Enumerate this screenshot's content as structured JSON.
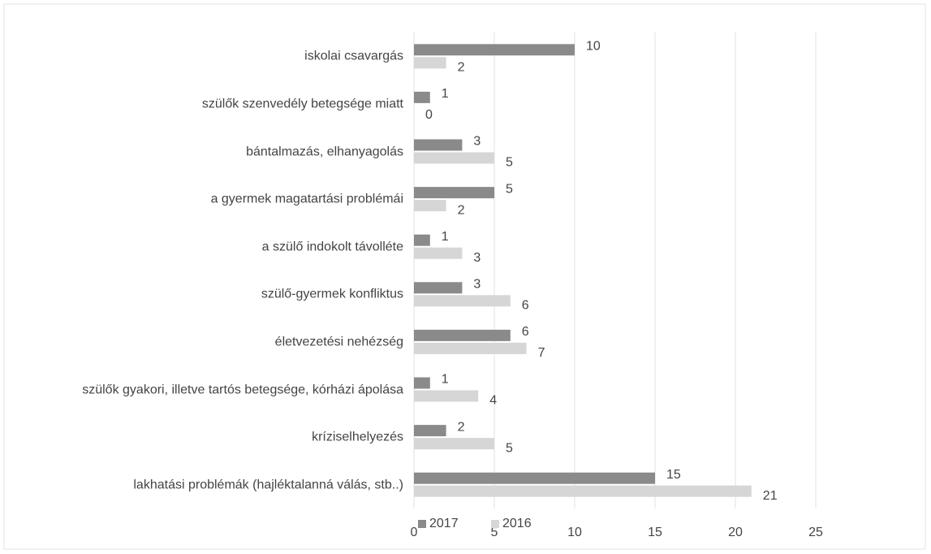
{
  "chart_data": {
    "type": "bar",
    "orientation": "horizontal",
    "categories": [
      "iskolai csavargás",
      "szülők szenvedély betegsége miatt",
      "bántalmazás, elhanyagolás",
      "a gyermek magatartási problémái",
      "a szülő indokolt távolléte",
      "szülő-gyermek konfliktus",
      "életvezetési nehézség",
      "szülők gyakori, illetve tartós betegsége, kórházi ápolása",
      "kríziselhelyezés",
      "lakhatási problémák (hajléktalanná válás, stb..)"
    ],
    "series": [
      {
        "name": "2017",
        "color": "#8a8a8a",
        "values": [
          10,
          1,
          3,
          5,
          1,
          3,
          6,
          1,
          2,
          15
        ]
      },
      {
        "name": "2016",
        "color": "#d6d6d6",
        "values": [
          2,
          0,
          5,
          2,
          3,
          6,
          7,
          4,
          5,
          21
        ]
      }
    ],
    "xlim": [
      0,
      25
    ],
    "xticks": [
      0,
      5,
      10,
      15,
      20,
      25
    ],
    "grid": true,
    "legend": "bottom"
  }
}
